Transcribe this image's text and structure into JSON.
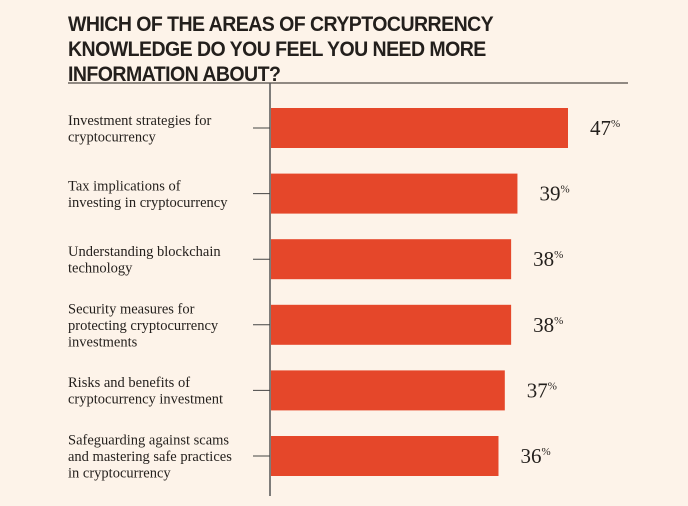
{
  "chart_data": {
    "type": "bar",
    "orientation": "horizontal",
    "title": "WHICH OF THE AREAS OF CRYPTOCURRENCY KNOWLEDGE DO YOU FEEL YOU NEED MORE INFORMATION ABOUT?",
    "categories": [
      [
        "Investment strategies for",
        "cryptocurrency"
      ],
      [
        "Tax implications of",
        "investing in cryptocurrency"
      ],
      [
        "Understanding blockchain",
        "technology"
      ],
      [
        "Security measures for",
        "protecting cryptocurrency",
        "investments"
      ],
      [
        "Risks and benefits of",
        "cryptocurrency investment"
      ],
      [
        "Safeguarding against scams",
        "and mastering safe practices",
        "in cryptocurrency"
      ]
    ],
    "values": [
      47,
      39,
      38,
      38,
      37,
      36
    ],
    "value_suffix": "%",
    "xlim": [
      0,
      56
    ],
    "grid": false,
    "bar_color": "#e5472a",
    "background": "#fdf3e9"
  }
}
